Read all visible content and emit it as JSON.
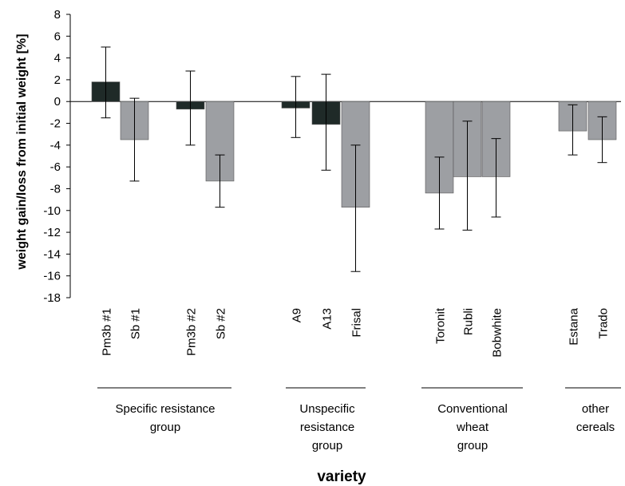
{
  "chart_data": {
    "type": "bar",
    "ylabel": "weight gain/loss from initial weight [%]",
    "xlabel": "variety",
    "ylim": [
      -18,
      8
    ],
    "yticks": [
      8,
      6,
      4,
      2,
      0,
      -2,
      -4,
      -6,
      -8,
      -10,
      -12,
      -14,
      -16,
      -18
    ],
    "grid": false,
    "legend": "none",
    "colors": {
      "dark": "#1f2a28",
      "gray": "#9d9fa3"
    },
    "bars": [
      {
        "category": "Pm3b #1",
        "value": 1.8,
        "err_low": -1.5,
        "err_high": 5.0,
        "color": "dark"
      },
      {
        "category": "Sb #1",
        "value": -3.5,
        "err_low": -7.3,
        "err_high": 0.3,
        "color": "gray"
      },
      {
        "category": "Pm3b #2",
        "value": -0.7,
        "err_low": -4.0,
        "err_high": 2.8,
        "color": "dark"
      },
      {
        "category": "Sb #2",
        "value": -7.3,
        "err_low": -9.7,
        "err_high": -4.9,
        "color": "gray"
      },
      {
        "category": "A9",
        "value": -0.6,
        "err_low": -3.3,
        "err_high": 2.3,
        "color": "dark"
      },
      {
        "category": "A13",
        "value": -2.1,
        "err_low": -6.3,
        "err_high": 2.5,
        "color": "dark"
      },
      {
        "category": "Frisal",
        "value": -9.7,
        "err_low": -15.6,
        "err_high": -4.0,
        "color": "gray"
      },
      {
        "category": "Toronit",
        "value": -8.4,
        "err_low": -11.7,
        "err_high": -5.1,
        "color": "gray"
      },
      {
        "category": "Rubli",
        "value": -6.9,
        "err_low": -11.8,
        "err_high": -1.8,
        "color": "gray"
      },
      {
        "category": "Bobwhite",
        "value": -6.9,
        "err_low": -10.6,
        "err_high": -3.4,
        "color": "gray"
      },
      {
        "category": "Estana",
        "value": -2.7,
        "err_low": -4.9,
        "err_high": -0.3,
        "color": "gray"
      },
      {
        "category": "Trado",
        "value": -3.5,
        "err_low": -5.6,
        "err_high": -1.4,
        "color": "gray"
      }
    ],
    "groups": [
      {
        "lines": [
          "Specific resistance",
          "group"
        ]
      },
      {
        "lines": [
          "Unspecific",
          "resistance",
          "group"
        ]
      },
      {
        "lines": [
          "Conventional",
          "wheat",
          "group"
        ]
      },
      {
        "lines": [
          "other",
          "cereals"
        ]
      }
    ]
  }
}
